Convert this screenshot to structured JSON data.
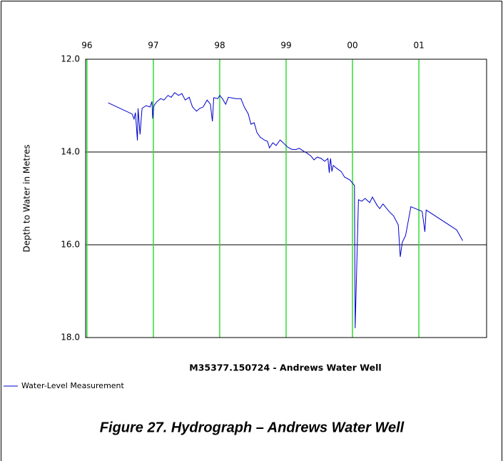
{
  "chart_data": {
    "type": "line",
    "title": "M35377.150724 - Andrews Water Well",
    "y_label": "Depth to Water in Metres",
    "x": [
      1996.32,
      1996.68,
      1996.71,
      1996.73,
      1996.76,
      1996.77,
      1996.8,
      1996.83,
      1996.89,
      1996.95,
      1996.98,
      1996.99,
      1997.01,
      1997.05,
      1997.11,
      1997.16,
      1997.22,
      1997.27,
      1997.32,
      1997.38,
      1997.43,
      1997.48,
      1997.54,
      1997.59,
      1997.65,
      1997.7,
      1997.75,
      1997.81,
      1997.86,
      1997.89,
      1997.91,
      1997.97,
      1998.0,
      1998.04,
      1998.09,
      1998.13,
      1998.24,
      1998.32,
      1998.37,
      1998.43,
      1998.47,
      1998.52,
      1998.56,
      1998.61,
      1998.67,
      1998.72,
      1998.75,
      1998.8,
      1998.85,
      1998.91,
      1998.97,
      1999.02,
      1999.08,
      1999.14,
      1999.2,
      1999.26,
      1999.31,
      1999.37,
      1999.42,
      1999.47,
      1999.53,
      1999.58,
      1999.63,
      1999.65,
      1999.66,
      1999.67,
      1999.69,
      1999.71,
      1999.76,
      1999.83,
      1999.88,
      1999.96,
      2000.03,
      2000.04,
      2000.09,
      2000.14,
      2000.19,
      2000.26,
      2000.3,
      2000.37,
      2000.41,
      2000.46,
      2000.55,
      2000.62,
      2000.69,
      2000.72,
      2000.75,
      2000.8,
      2000.88,
      2001.05,
      2001.09,
      2001.11,
      2001.57,
      2001.66
    ],
    "series": [
      {
        "name": "Water-Level Measurement",
        "color": "#0000cc",
        "values": [
          12.94,
          13.18,
          13.29,
          13.15,
          13.75,
          13.06,
          13.62,
          13.06,
          13.0,
          13.03,
          12.91,
          13.28,
          13.0,
          12.92,
          12.85,
          12.88,
          12.78,
          12.82,
          12.72,
          12.78,
          12.74,
          12.88,
          12.82,
          13.03,
          13.12,
          13.06,
          13.03,
          12.88,
          12.97,
          13.34,
          12.83,
          12.85,
          12.78,
          12.85,
          12.97,
          12.82,
          12.85,
          12.85,
          13.03,
          13.18,
          13.4,
          13.37,
          13.58,
          13.68,
          13.74,
          13.77,
          13.91,
          13.8,
          13.86,
          13.74,
          13.82,
          13.89,
          13.94,
          13.95,
          13.92,
          13.98,
          14.02,
          14.08,
          14.17,
          14.11,
          14.14,
          14.2,
          14.14,
          14.45,
          14.26,
          14.14,
          14.42,
          14.29,
          14.35,
          14.42,
          14.54,
          14.6,
          14.72,
          17.8,
          15.03,
          15.06,
          15.0,
          15.09,
          14.97,
          15.15,
          15.22,
          15.12,
          15.28,
          15.38,
          15.57,
          16.26,
          15.95,
          15.8,
          15.18,
          15.28,
          15.72,
          15.25,
          15.68,
          15.91
        ]
      }
    ],
    "xlim": [
      1995.98,
      2002.02
    ],
    "xticks": [
      {
        "value": 1996,
        "label": "96"
      },
      {
        "value": 1997,
        "label": "97"
      },
      {
        "value": 1998,
        "label": "98"
      },
      {
        "value": 1999,
        "label": "99"
      },
      {
        "value": 2000,
        "label": "00"
      },
      {
        "value": 2001,
        "label": "01"
      }
    ],
    "ylim": [
      12,
      18
    ],
    "y_inverted": true,
    "yticks": [
      {
        "value": 12,
        "label": "12.0"
      },
      {
        "value": 14,
        "label": "14.0"
      },
      {
        "value": 16,
        "label": "16.0"
      },
      {
        "value": 18,
        "label": "18.0"
      }
    ],
    "x_grid_color": "#33dd33",
    "y_grid_color": "#000000",
    "grid": true
  },
  "caption": "Figure 27. Hydrograph – Andrews Water Well"
}
